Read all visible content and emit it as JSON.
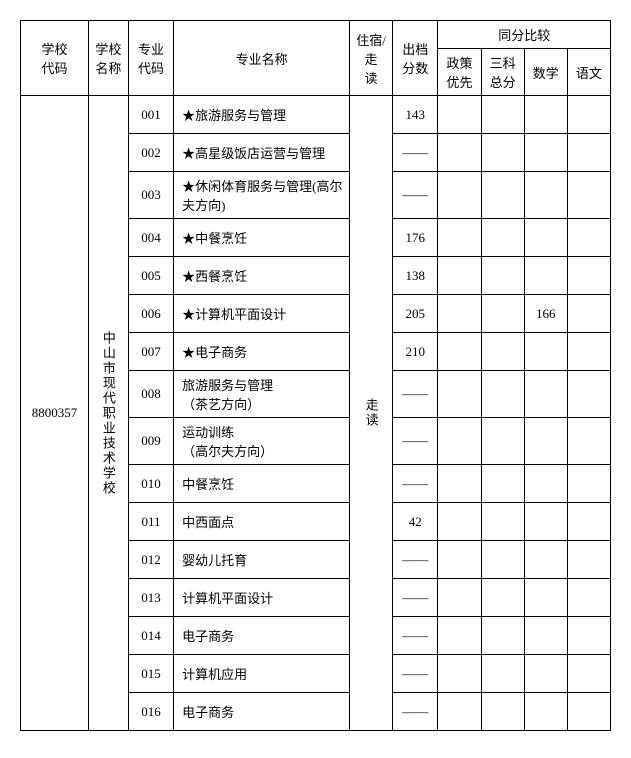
{
  "headers": {
    "school_code": "学校\n代码",
    "school_name": "学校\n名称",
    "major_code": "专业\n代码",
    "major_name": "专业名称",
    "residence": "住宿/走\n读",
    "score": "出档\n分数",
    "comparison": "同分比较",
    "policy": "政策\n优先",
    "three_subjects": "三科\n总分",
    "math": "数学",
    "chinese": "语文"
  },
  "school": {
    "code": "8800357",
    "name": "中山市现代职业技术学校",
    "residence": "走读"
  },
  "majors": [
    {
      "code": "001",
      "name": "★旅游服务与管理",
      "score": "143",
      "policy": "",
      "three": "",
      "math": "",
      "chinese": "",
      "double": false
    },
    {
      "code": "002",
      "name": "★高星级饭店运营与管理",
      "score": "——",
      "policy": "",
      "three": "",
      "math": "",
      "chinese": "",
      "double": false
    },
    {
      "code": "003",
      "name": "★休闲体育服务与管理(高尔夫方向)",
      "score": "——",
      "policy": "",
      "three": "",
      "math": "",
      "chinese": "",
      "double": true
    },
    {
      "code": "004",
      "name": "★中餐烹饪",
      "score": "176",
      "policy": "",
      "three": "",
      "math": "",
      "chinese": "",
      "double": false
    },
    {
      "code": "005",
      "name": "★西餐烹饪",
      "score": "138",
      "policy": "",
      "three": "",
      "math": "",
      "chinese": "",
      "double": false
    },
    {
      "code": "006",
      "name": "★计算机平面设计",
      "score": "205",
      "policy": "",
      "three": "",
      "math": "166",
      "chinese": "",
      "double": false
    },
    {
      "code": "007",
      "name": "★电子商务",
      "score": "210",
      "policy": "",
      "three": "",
      "math": "",
      "chinese": "",
      "double": false
    },
    {
      "code": "008",
      "name": "旅游服务与管理\n（茶艺方向）",
      "score": "——",
      "policy": "",
      "three": "",
      "math": "",
      "chinese": "",
      "double": true
    },
    {
      "code": "009",
      "name": "运动训练\n（高尔夫方向）",
      "score": "——",
      "policy": "",
      "three": "",
      "math": "",
      "chinese": "",
      "double": true
    },
    {
      "code": "010",
      "name": "中餐烹饪",
      "score": "——",
      "policy": "",
      "three": "",
      "math": "",
      "chinese": "",
      "double": false
    },
    {
      "code": "011",
      "name": "中西面点",
      "score": "42",
      "policy": "",
      "three": "",
      "math": "",
      "chinese": "",
      "double": false
    },
    {
      "code": "012",
      "name": "婴幼儿托育",
      "score": "——",
      "policy": "",
      "three": "",
      "math": "",
      "chinese": "",
      "double": false
    },
    {
      "code": "013",
      "name": "计算机平面设计",
      "score": "——",
      "policy": "",
      "three": "",
      "math": "",
      "chinese": "",
      "double": false
    },
    {
      "code": "014",
      "name": "电子商务",
      "score": "——",
      "policy": "",
      "three": "",
      "math": "",
      "chinese": "",
      "double": false
    },
    {
      "code": "015",
      "name": "计算机应用",
      "score": "——",
      "policy": "",
      "three": "",
      "math": "",
      "chinese": "",
      "double": false
    },
    {
      "code": "016",
      "name": "电子商务",
      "score": "——",
      "policy": "",
      "three": "",
      "math": "",
      "chinese": "",
      "double": false
    }
  ]
}
